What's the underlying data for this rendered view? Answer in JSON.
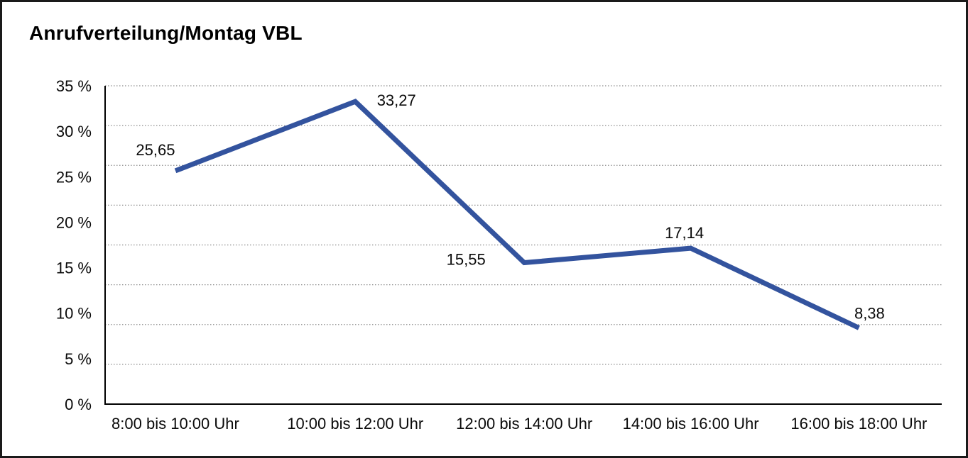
{
  "chart_data": {
    "type": "line",
    "title": "Anrufverteilung/Montag VBL",
    "categories": [
      "8:00 bis 10:00 Uhr",
      "10:00 bis 12:00 Uhr",
      "12:00 bis 14:00 Uhr",
      "14:00 bis 16:00 Uhr",
      "16:00 bis 18:00 Uhr"
    ],
    "series": [
      {
        "name": "Anrufverteilung Montag VBL",
        "values": [
          25.65,
          33.27,
          15.55,
          17.14,
          8.38
        ],
        "value_labels": [
          "25,65",
          "33,27",
          "15,55",
          "17,14",
          "8,38"
        ]
      }
    ],
    "y_axis": {
      "tick_labels": [
        "0 %",
        "5 %",
        "10 %",
        "15 %",
        "20 %",
        "25 %",
        "30 %",
        "35 %"
      ],
      "tick_values": [
        0,
        5,
        10,
        15,
        20,
        25,
        30,
        35
      ],
      "range": [
        0,
        35
      ]
    },
    "x_axis": {
      "label": ""
    },
    "gridlines": {
      "count": 8,
      "style": "dotted",
      "visible": true
    },
    "legend_position": "none",
    "colors": {
      "line": "#33539E",
      "axis": "#000000",
      "grid": "#8c8c8c",
      "text": "#0a0a0a",
      "background": "#ffffff"
    }
  }
}
